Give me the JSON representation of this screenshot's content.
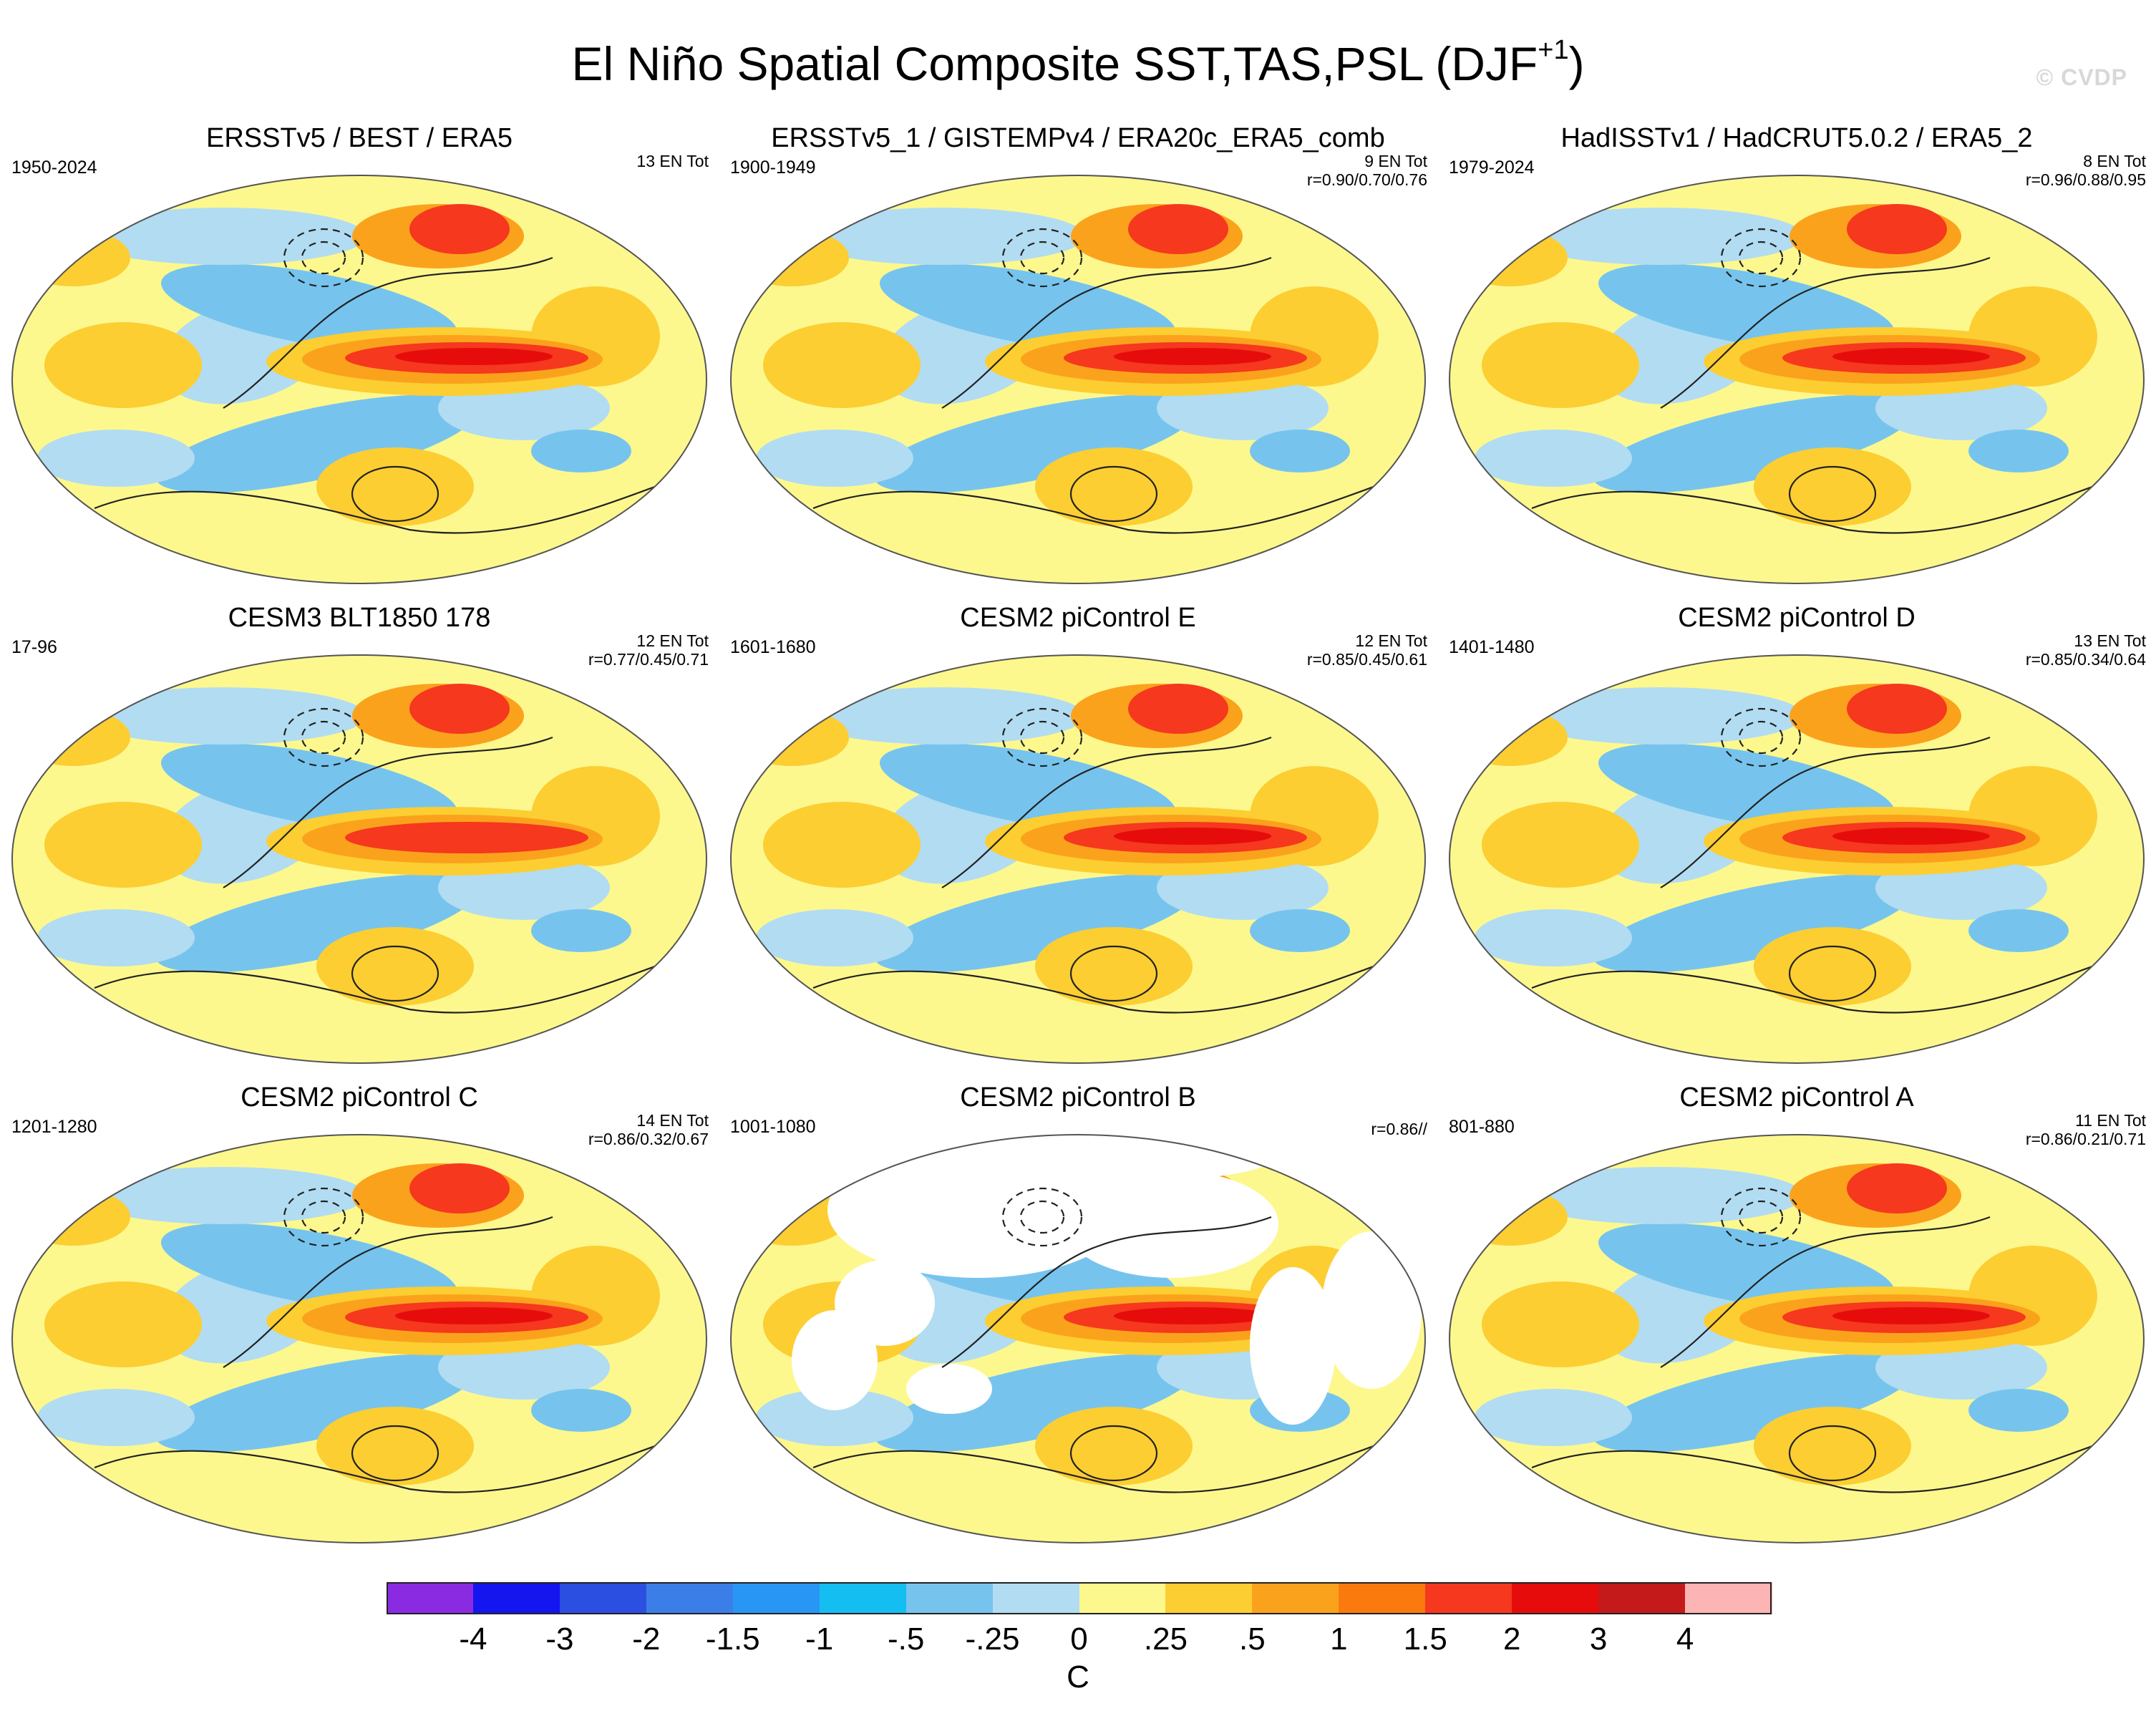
{
  "title": {
    "main": "El Niño Spatial Composite SST,TAS,PSL (DJF",
    "superscript": "+1",
    "close": ")"
  },
  "watermark": "© CVDP",
  "panels": [
    {
      "title": "ERSSTv5 / BEST / ERA5",
      "period": "1950-2024",
      "tot": "13 EN Tot",
      "r": "",
      "land": true
    },
    {
      "title": "ERSSTv5_1 / GISTEMPv4 / ERA20c_ERA5_comb",
      "period": "1900-1949",
      "tot": "9 EN Tot",
      "r": "r=0.90/0.70/0.76",
      "land": true
    },
    {
      "title": "HadISSTv1 / HadCRUT5.0.2 / ERA5_2",
      "period": "1979-2024",
      "tot": "8 EN Tot",
      "r": "r=0.96/0.88/0.95",
      "land": true
    },
    {
      "title": "CESM3 BLT1850 178",
      "period": "17-96",
      "tot": "12 EN Tot",
      "r": "r=0.77/0.45/0.71",
      "land": true
    },
    {
      "title": "CESM2 piControl E",
      "period": "1601-1680",
      "tot": "12 EN Tot",
      "r": "r=0.85/0.45/0.61",
      "land": true
    },
    {
      "title": "CESM2 piControl D",
      "period": "1401-1480",
      "tot": "13 EN Tot",
      "r": "r=0.85/0.34/0.64",
      "land": true
    },
    {
      "title": "CESM2 piControl C",
      "period": "1201-1280",
      "tot": "14 EN Tot",
      "r": "r=0.86/0.32/0.67",
      "land": true
    },
    {
      "title": "CESM2 piControl B",
      "period": "1001-1080",
      "tot": "",
      "r": "r=0.86//",
      "land": false
    },
    {
      "title": "CESM2 piControl A",
      "period": "801-880",
      "tot": "11 EN Tot",
      "r": "r=0.86/0.21/0.71",
      "land": true
    }
  ],
  "colorbar": {
    "units": "C",
    "colors": [
      "#8a2be2",
      "#1515f0",
      "#2b4fe0",
      "#3c7ee8",
      "#2896f5",
      "#14bef0",
      "#76c4ee",
      "#b2dcf2",
      "#fdf88e",
      "#fcce32",
      "#fba21c",
      "#fb7a0e",
      "#f5381e",
      "#e60c0c",
      "#c41a1a",
      "#fdb4b4"
    ],
    "labels": [
      "-4",
      "-3",
      "-2",
      "-1.5",
      "-1",
      "-.5",
      "-.25",
      "0",
      ".25",
      ".5",
      "1",
      "1.5",
      "2",
      "3",
      "4"
    ]
  }
}
